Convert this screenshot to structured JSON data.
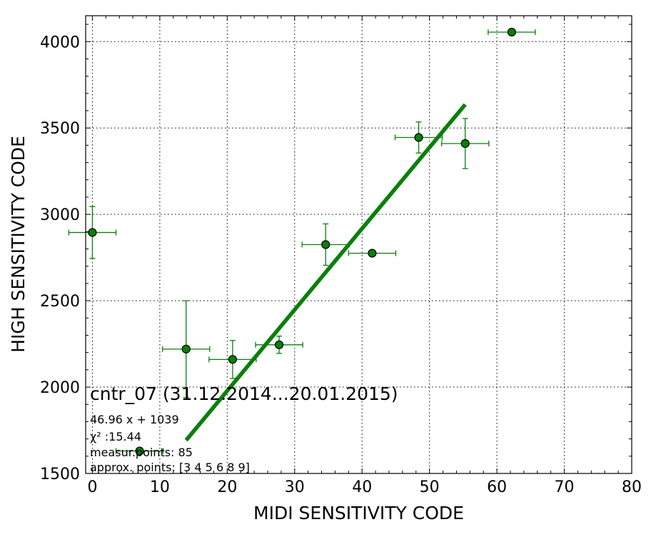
{
  "chart_data": {
    "type": "scatter",
    "title": "cntr_07 (31.12.2014...20.01.2015)",
    "xlabel": "MIDI SENSITIVITY CODE",
    "ylabel": "HIGH SENSITIVITY CODE",
    "xlim": [
      -1,
      80
    ],
    "ylim": [
      1500,
      4150
    ],
    "x_ticks": [
      0,
      10,
      20,
      30,
      40,
      50,
      60,
      70,
      80
    ],
    "y_ticks": [
      1500,
      2000,
      2500,
      3000,
      3500,
      4000
    ],
    "grid": true,
    "series": [
      {
        "kind": "errorbar-points",
        "color": "#0a7f0a",
        "points": [
          {
            "x": 0,
            "y": 2895,
            "xerr": 3.5,
            "yerr": 150
          },
          {
            "x": 7,
            "y": 1630,
            "xerr": 3.5,
            "yerr": 10
          },
          {
            "x": 13.9,
            "y": 2220,
            "xerr": 3.5,
            "yerr": 280
          },
          {
            "x": 20.8,
            "y": 2160,
            "xerr": 3.5,
            "yerr": 110
          },
          {
            "x": 27.7,
            "y": 2245,
            "xerr": 3.5,
            "yerr": 50
          },
          {
            "x": 34.6,
            "y": 2825,
            "xerr": 3.5,
            "yerr": 120
          },
          {
            "x": 41.5,
            "y": 2775,
            "xerr": 3.5,
            "yerr": 0
          },
          {
            "x": 48.4,
            "y": 3445,
            "xerr": 3.5,
            "yerr": 90
          },
          {
            "x": 55.3,
            "y": 3410,
            "xerr": 3.5,
            "yerr": 145
          },
          {
            "x": 62.2,
            "y": 4055,
            "xerr": 3.5,
            "yerr": 0
          }
        ]
      },
      {
        "kind": "fit-line",
        "color": "#0a7f0a",
        "x": [
          13.9,
          55.3
        ],
        "y": [
          1692,
          3636
        ]
      }
    ],
    "annotations": [
      "46.96 x + 1039",
      "χ² :15.44",
      "measur.points: 85",
      "approx. points: [3 4 5 6 8 9]"
    ]
  }
}
